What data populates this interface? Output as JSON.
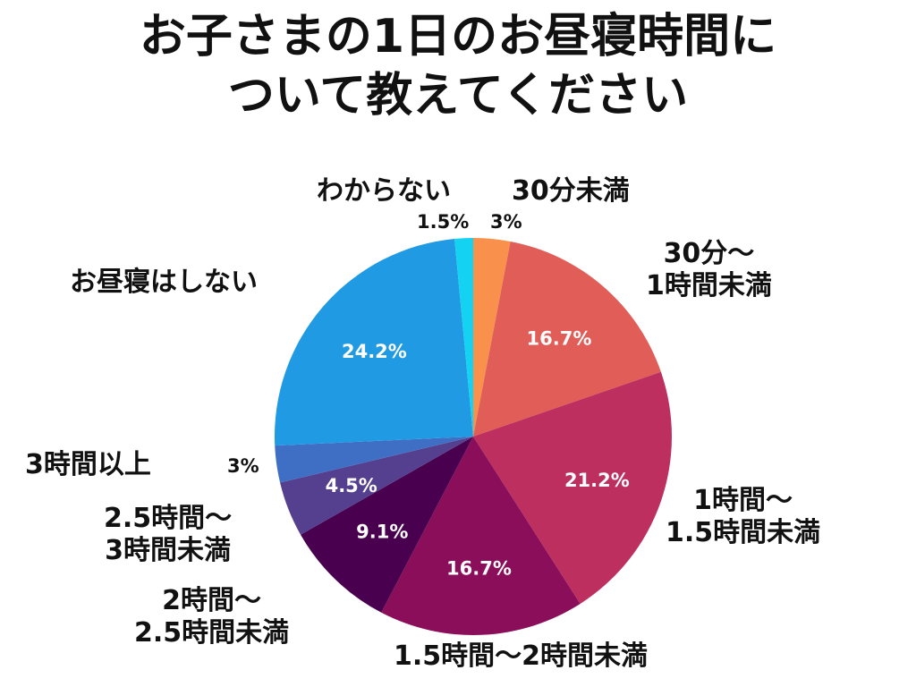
{
  "title_line1": "お子さまの1日のお昼寝時間に",
  "title_line2": "ついて教えてください",
  "chart_data": {
    "type": "pie",
    "title": "お子さまの1日のお昼寝時間について教えてください",
    "unit": "%",
    "slices": [
      {
        "label": "30分未満",
        "label_lines": [
          "30分未満"
        ],
        "value": 3,
        "pct_text": "3%",
        "color": "#f9914d"
      },
      {
        "label": "30分〜1時間未満",
        "label_lines": [
          "30分〜",
          "1時間未満"
        ],
        "value": 16.7,
        "pct_text": "16.7%",
        "color": "#e15d58"
      },
      {
        "label": "1時間〜1.5時間未満",
        "label_lines": [
          "1時間〜",
          "1.5時間未満"
        ],
        "value": 21.2,
        "pct_text": "21.2%",
        "color": "#bd2f5f"
      },
      {
        "label": "1.5時間〜2時間未満",
        "label_lines": [
          "1.5時間〜2時間未満"
        ],
        "value": 16.7,
        "pct_text": "16.7%",
        "color": "#8b0e5b"
      },
      {
        "label": "2時間〜2.5時間未満",
        "label_lines": [
          "2時間〜",
          "2.5時間未満"
        ],
        "value": 9.1,
        "pct_text": "9.1%",
        "color": "#48004f"
      },
      {
        "label": "2.5時間〜3時間未満",
        "label_lines": [
          "2.5時間〜",
          "3時間未満"
        ],
        "value": 4.5,
        "pct_text": "4.5%",
        "color": "#553f8f"
      },
      {
        "label": "3時間以上",
        "label_lines": [
          "3時間以上"
        ],
        "value": 3,
        "pct_text": "3%",
        "color": "#3f6fc4"
      },
      {
        "label": "お昼寝はしない",
        "label_lines": [
          "お昼寝はしない"
        ],
        "value": 24.2,
        "pct_text": "24.2%",
        "color": "#1f9ae3"
      },
      {
        "label": "わからない",
        "label_lines": [
          "わからない"
        ],
        "value": 1.5,
        "pct_text": "1.5%",
        "color": "#14d2f2"
      }
    ]
  }
}
